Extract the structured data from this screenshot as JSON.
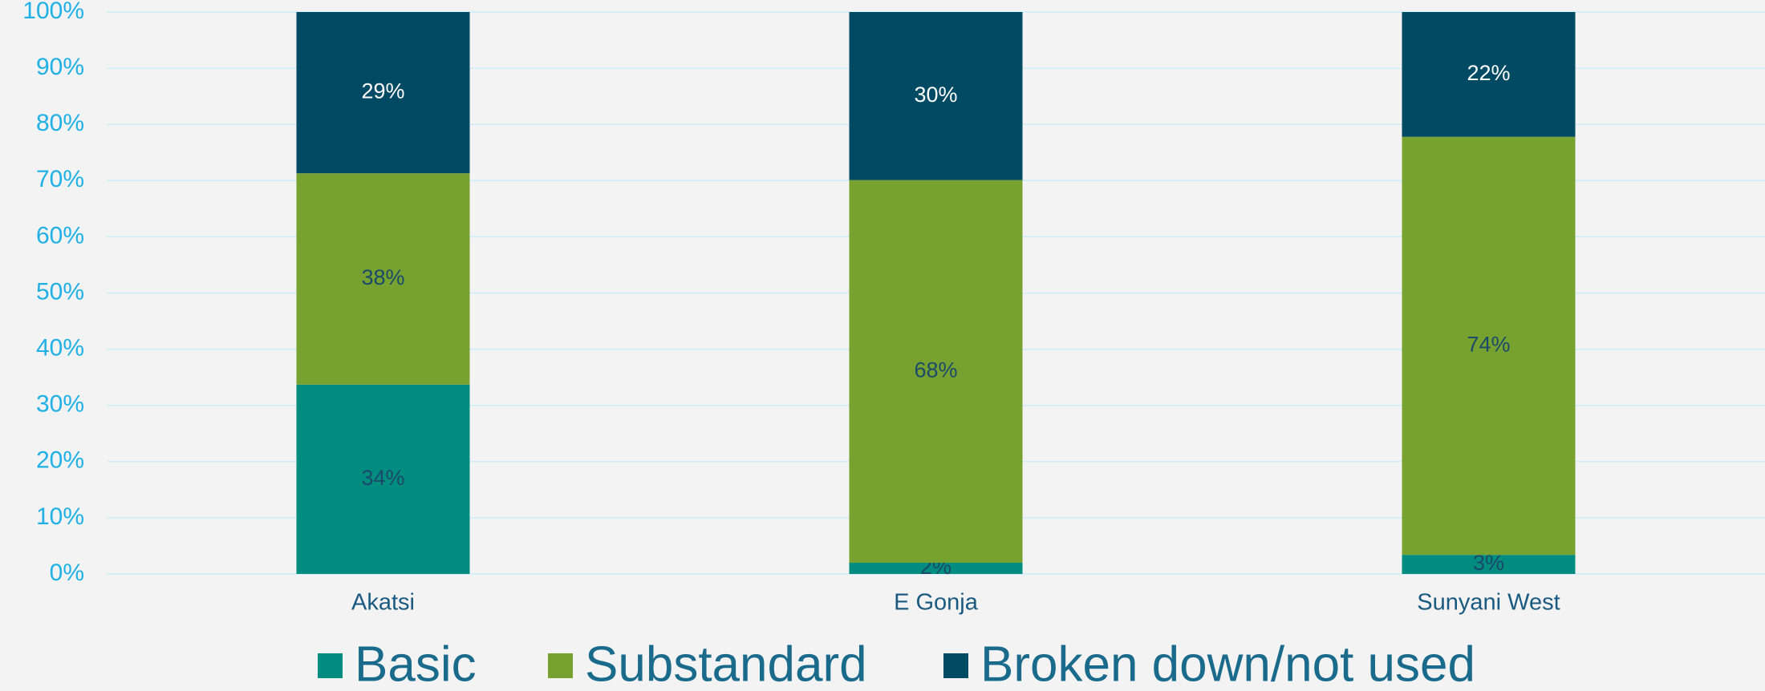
{
  "chart_data": {
    "type": "stacked_bar",
    "categories": [
      "Akatsi",
      "E Gonja",
      "Sunyani West"
    ],
    "series": [
      {
        "name": "Basic",
        "color": "#008c7e",
        "values": [
          33.7,
          2.0,
          3.4
        ],
        "value_labels": [
          "34%",
          "2%",
          "3%"
        ]
      },
      {
        "name": "Substandard",
        "color": "#78a22f",
        "values": [
          37.6,
          68.1,
          74.4
        ],
        "value_labels": [
          "38%",
          "68%",
          "74%"
        ]
      },
      {
        "name": "Broken down/not used",
        "color": "#004a64",
        "values": [
          28.7,
          29.9,
          22.2
        ],
        "value_labels": [
          "29%",
          "30%",
          "22%"
        ]
      }
    ],
    "ylim": [
      0,
      100
    ],
    "yticks": [
      {
        "value": 0,
        "label": "0%"
      },
      {
        "value": 10,
        "label": "10%"
      },
      {
        "value": 20,
        "label": "20%"
      },
      {
        "value": 30,
        "label": "30%"
      },
      {
        "value": 40,
        "label": "40%"
      },
      {
        "value": 50,
        "label": "50%"
      },
      {
        "value": 60,
        "label": "60%"
      },
      {
        "value": 70,
        "label": "70%"
      },
      {
        "value": 80,
        "label": "80%"
      },
      {
        "value": 90,
        "label": "90%"
      },
      {
        "value": 100,
        "label": "100%"
      }
    ],
    "grid": true,
    "legend": "bottom"
  }
}
